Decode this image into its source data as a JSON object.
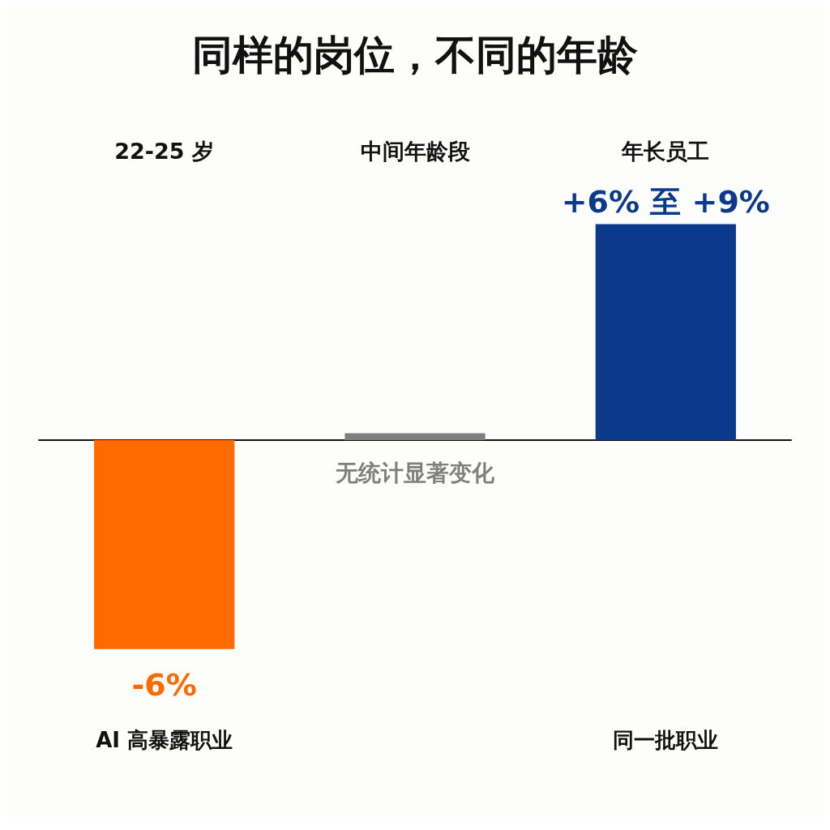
{
  "chart_data": {
    "type": "bar",
    "title": "同样的岗位，不同的年龄",
    "categories": [
      "22-25 岁",
      "中间年龄段",
      "年长员工"
    ],
    "values": [
      -6,
      0.2,
      6.2
    ],
    "colors": [
      "#ff6a00",
      "#7f7f7f",
      "#0b3a8c"
    ],
    "value_labels": [
      "-6%",
      "无统计显著变化",
      "+6% 至 +9%"
    ],
    "annotations": [
      "AI 高暴露职业",
      "同一批职业"
    ]
  }
}
